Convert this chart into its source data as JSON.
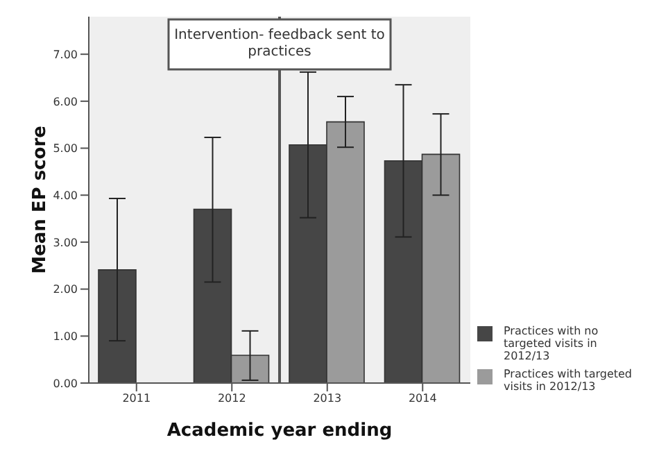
{
  "chart_data": {
    "type": "bar",
    "xlabel": "Academic year ending",
    "ylabel": "Mean EP score",
    "x": [
      2011,
      2012,
      2013,
      2014
    ],
    "xlim": [
      2010.5,
      2014.5
    ],
    "xticks": [
      2011,
      2012,
      2013,
      2014
    ],
    "ylim": [
      0,
      7.8
    ],
    "yticks": [
      {
        "value": 0,
        "label": "0.00"
      },
      {
        "value": 1,
        "label": "1.00"
      },
      {
        "value": 2,
        "label": "2.00"
      },
      {
        "value": 3,
        "label": "3.00"
      },
      {
        "value": 4,
        "label": "4.00"
      },
      {
        "value": 5,
        "label": "5.00"
      },
      {
        "value": 6,
        "label": "6.00"
      },
      {
        "value": 7,
        "label": "7.00"
      }
    ],
    "series": [
      {
        "name": "Practices with no targeted visits in 2012/13",
        "color": "#464646",
        "values": [
          2.41,
          3.7,
          5.07,
          4.73
        ],
        "errors": [
          [
            0.9,
            3.93
          ],
          [
            2.15,
            5.23
          ],
          [
            3.52,
            6.62
          ],
          [
            3.11,
            6.35
          ]
        ]
      },
      {
        "name": "Practices with targeted visits in 2012/13",
        "color": "#9b9b9b",
        "values": [
          null,
          0.59,
          5.56,
          4.87
        ],
        "errors": [
          null,
          [
            0.06,
            1.11
          ],
          [
            5.02,
            6.1
          ],
          [
            4.0,
            5.73
          ]
        ]
      }
    ],
    "ref_lines": [
      {
        "axis": "x",
        "value": 2012.5,
        "label": "Intervention- feedback sent to practices",
        "color": "#555555"
      }
    ],
    "legend": "right"
  }
}
